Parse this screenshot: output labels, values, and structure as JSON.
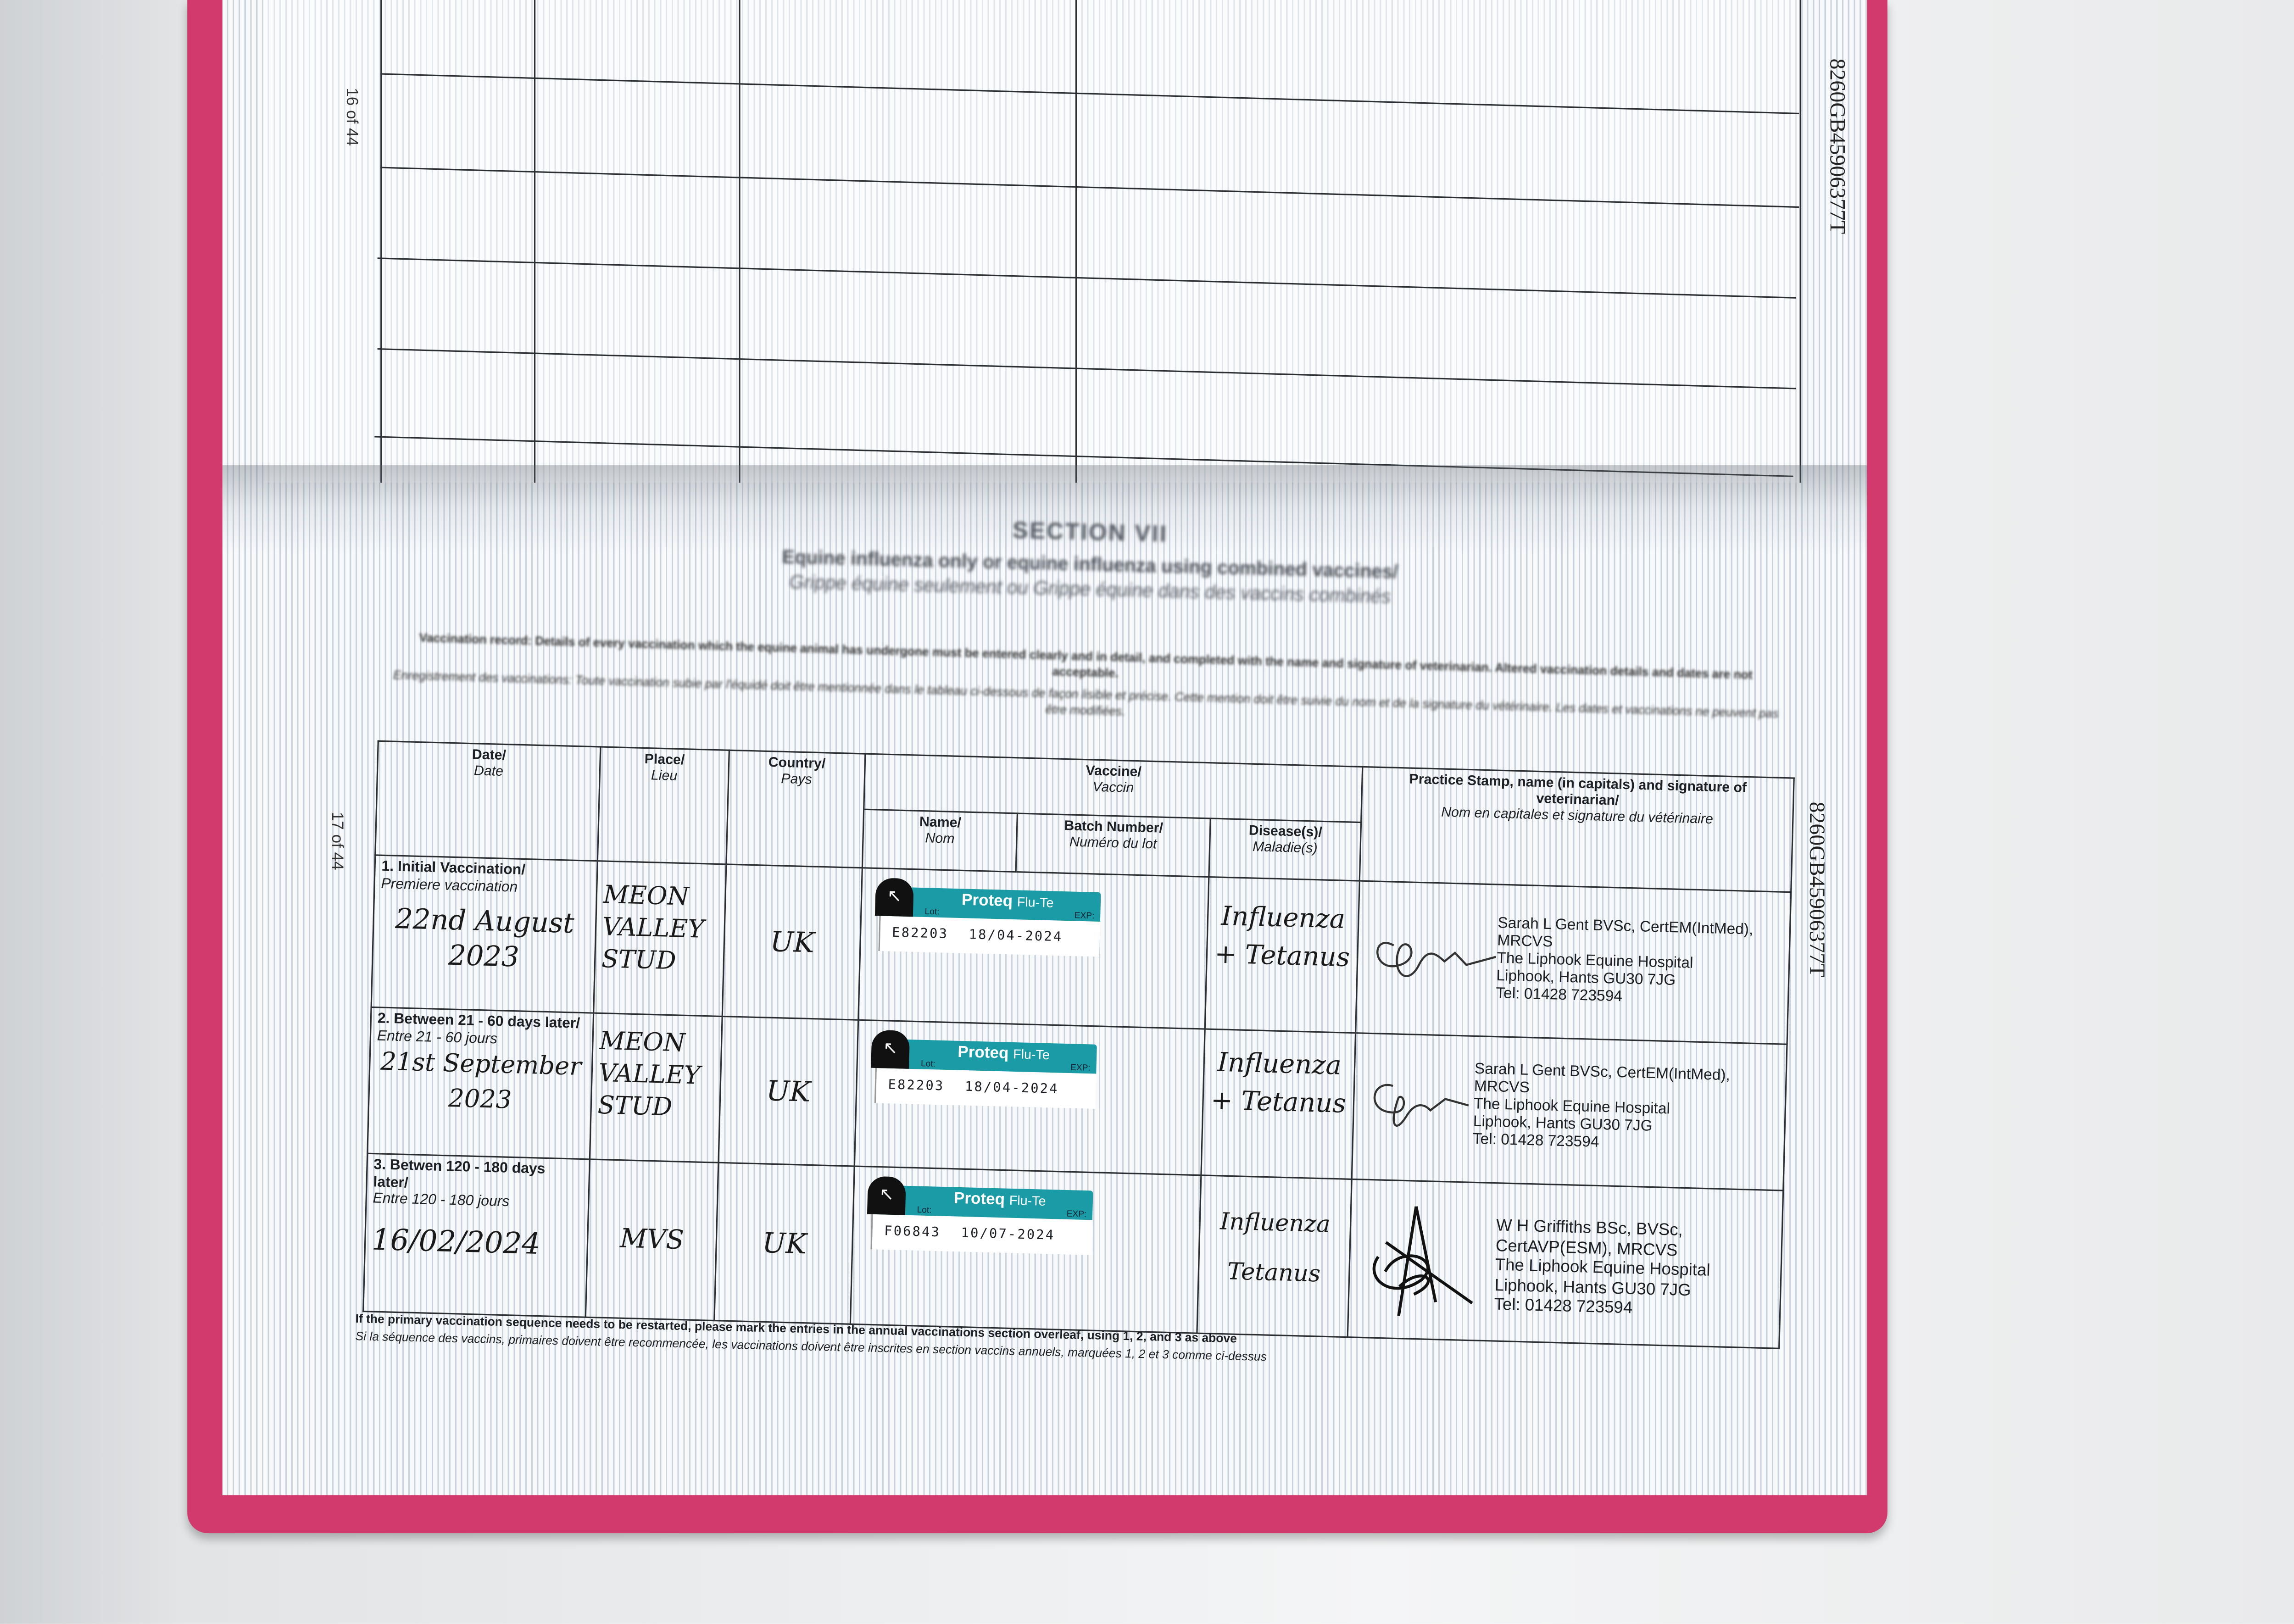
{
  "page_numbers": {
    "upper": "16 of 44",
    "lower": "17 of 44"
  },
  "passport_number": "8260GB45906377T",
  "section": {
    "title": "SECTION VII",
    "subtitle_en": "Equine influenza only or equine influenza using combined vaccines/",
    "subtitle_fr": "Grippe équine seulement ou Grippe équine dans des vaccins combinés",
    "intro_en": "Vaccination record: Details of every vaccination which the equine animal has undergone must be entered clearly and in detail, and completed with the name and signature of veterinarian. Altered vaccination details and dates are not acceptable.",
    "intro_fr": "Enregistrement des vaccinations: Toute vaccination subie par l'équidé doit être mentionnée dans le tableau ci-dessous de façon lisible et précise. Cette mention doit être suivie du nom et de la signature du vétérinaire. Les dates et vaccinations ne peuvent pas être modifiées."
  },
  "headers": {
    "date": {
      "en": "Date/",
      "fr": "Date"
    },
    "place": {
      "en": "Place/",
      "fr": "Lieu"
    },
    "country": {
      "en": "Country/",
      "fr": "Pays"
    },
    "vaccine": {
      "en": "Vaccine/",
      "fr": "Vaccin"
    },
    "name": {
      "en": "Name/",
      "fr": "Nom"
    },
    "batch": {
      "en": "Batch Number/",
      "fr": "Numéro du lot"
    },
    "disease": {
      "en": "Disease(s)/",
      "fr": "Maladie(s)"
    },
    "practice": {
      "en": "Practice Stamp, name (in capitals) and signature of veterinarian/",
      "fr": "Nom en capitales et signature du vétérinaire"
    }
  },
  "label": {
    "brand": "Proteq",
    "product": "Flu-Te",
    "lot_caption": "Lot:",
    "exp_caption": "EXP:",
    "color": "#1a9ba6"
  },
  "rows": [
    {
      "label_en": "1. Initial Vaccination/",
      "label_fr": "Premiere vaccination",
      "date": "22nd August 2023",
      "place": "MEON VALLEY STUD",
      "country": "UK",
      "lot": "E82203",
      "exp": "18/04-2024",
      "disease": "Influenza + Tetanus",
      "stamp": [
        "Sarah L Gent BVSc, CertEM(IntMed), MRCVS",
        "The Liphook Equine Hospital",
        "Liphook, Hants  GU30 7JG",
        "Tel: 01428 723594"
      ]
    },
    {
      "label_en": "2. Between 21 - 60 days later/",
      "label_fr": "Entre 21 - 60 jours",
      "date": "21st September 2023",
      "place": "MEON VALLEY STUD",
      "country": "UK",
      "lot": "E82203",
      "exp": "18/04-2024",
      "disease": "Influenza + Tetanus",
      "stamp": [
        "Sarah L Gent BVSc, CertEM(IntMed), MRCVS",
        "The Liphook Equine Hospital",
        "Liphook, Hants  GU30 7JG",
        "Tel: 01428 723594"
      ]
    },
    {
      "label_en": "3. Betwen 120 - 180 days later/",
      "label_fr": "Entre 120 - 180 jours",
      "date": "16/02/2024",
      "place": "MVS",
      "country": "UK",
      "lot": "F06843",
      "exp": "10/07-2024",
      "disease": "Influenza Tetanus",
      "stamp": [
        "W H Griffiths BSc, BVSc,",
        "CertAVP(ESM), MRCVS",
        "The Liphook Equine Hospital",
        "Liphook, Hants GU30 7JG",
        "Tel: 01428 723594"
      ]
    }
  ],
  "footnote": {
    "en": "If the primary vaccination sequence needs to be restarted, please mark the entries in the annual vaccinations section overleaf, using 1, 2, and 3 as above",
    "fr": "Si la séquence des vaccins, primaires doivent être recommencée, les vaccinations doivent être inscrites en section vaccins annuels, marquées 1, 2 et 3 comme ci-dessus"
  },
  "colors": {
    "cover": "#d23a6e",
    "label": "#1a9ba6"
  }
}
